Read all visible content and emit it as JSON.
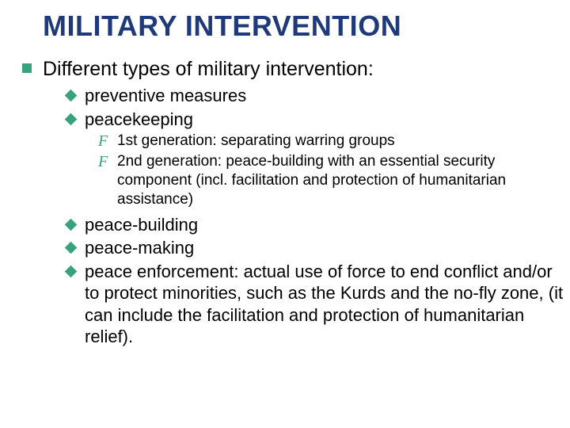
{
  "colors": {
    "title": "#1f3a7a",
    "bullet": "#38a27e",
    "text": "#000000",
    "background": "#ffffff"
  },
  "fonts": {
    "title_size": 36,
    "lvl1_size": 25,
    "lvl2_size": 22,
    "lvl3_size": 19,
    "title_weight": "bold"
  },
  "title": "MILITARY INTERVENTION",
  "lvl1_intro": "Different types of military intervention:",
  "lvl2": {
    "preventive": "preventive measures",
    "peacekeeping": "peacekeeping",
    "peace_building": "peace-building",
    "peace_making": "peace-making",
    "peace_enforcement": "peace enforcement: actual use of force to end conflict and/or to protect minorities, such as the Kurds and the no-fly zone, (it can include the facilitation and protection of humanitarian relief)."
  },
  "lvl3": {
    "gen1": "1st generation: separating warring groups",
    "gen2": "2nd generation: peace-building with an essential security component (incl. facilitation and protection of humanitarian assistance)"
  },
  "bullets": {
    "lvl3_marker": "F"
  }
}
